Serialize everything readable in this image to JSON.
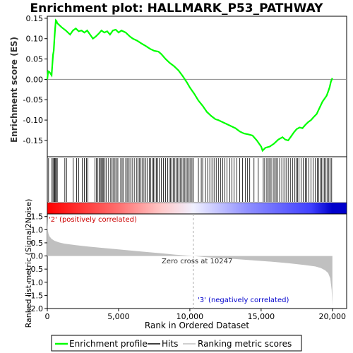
{
  "title": "Enrichment plot: HALLMARK_P53_PATHWAY",
  "chart_data": [
    {
      "type": "line",
      "panel": "enrichment-score",
      "ylabel": "Enrichment score (ES)",
      "ylim": [
        -0.19,
        0.155
      ],
      "xlim": [
        0,
        21000
      ],
      "yticks": [
        "0.15",
        "0.10",
        "0.05",
        "0.00",
        "-0.05",
        "-0.10",
        "-0.15"
      ],
      "ytick_values": [
        0.15,
        0.1,
        0.05,
        0.0,
        -0.05,
        -0.1,
        -0.15
      ],
      "series": [
        {
          "name": "Enrichment profile",
          "color": "#00ff00",
          "x": [
            0,
            60,
            150,
            300,
            400,
            450,
            500,
            550,
            600,
            650,
            700,
            1000,
            1300,
            1600,
            1800,
            2000,
            2200,
            2400,
            2600,
            2800,
            3000,
            3200,
            3400,
            3600,
            3800,
            4000,
            4200,
            4400,
            4600,
            4800,
            5000,
            5200,
            5500,
            5800,
            6000,
            6300,
            6600,
            6900,
            7200,
            7500,
            7800,
            8000,
            8300,
            8600,
            8900,
            9200,
            9500,
            9800,
            10000,
            10300,
            10600,
            10900,
            11200,
            11500,
            11800,
            12000,
            12300,
            12600,
            12900,
            13200,
            13500,
            13800,
            14100,
            14400,
            14700,
            15000,
            15100,
            15300,
            15600,
            15900,
            16200,
            16500,
            16700,
            16900,
            17100,
            17300,
            17500,
            17700,
            17900,
            18100,
            18300,
            18500,
            18700,
            18900,
            19100,
            19300,
            19500,
            19600,
            19700,
            19800,
            19900,
            20000
          ],
          "values": [
            0.0,
            0.02,
            0.018,
            0.01,
            0.06,
            0.07,
            0.1,
            0.125,
            0.145,
            0.143,
            0.138,
            0.128,
            0.12,
            0.11,
            0.12,
            0.125,
            0.118,
            0.12,
            0.115,
            0.12,
            0.11,
            0.1,
            0.105,
            0.112,
            0.12,
            0.115,
            0.118,
            0.11,
            0.12,
            0.122,
            0.115,
            0.12,
            0.115,
            0.105,
            0.1,
            0.095,
            0.088,
            0.082,
            0.075,
            0.07,
            0.068,
            0.062,
            0.05,
            0.04,
            0.032,
            0.022,
            0.008,
            -0.008,
            -0.02,
            -0.035,
            -0.052,
            -0.065,
            -0.08,
            -0.09,
            -0.098,
            -0.1,
            -0.105,
            -0.11,
            -0.115,
            -0.12,
            -0.128,
            -0.133,
            -0.135,
            -0.138,
            -0.15,
            -0.165,
            -0.175,
            -0.168,
            -0.165,
            -0.158,
            -0.148,
            -0.142,
            -0.148,
            -0.15,
            -0.14,
            -0.13,
            -0.122,
            -0.118,
            -0.12,
            -0.112,
            -0.105,
            -0.1,
            -0.092,
            -0.085,
            -0.07,
            -0.055,
            -0.045,
            -0.04,
            -0.03,
            -0.02,
            -0.005,
            0.003
          ]
        }
      ],
      "zero_line": 0.0
    },
    {
      "type": "rug",
      "panel": "hits",
      "legend_label": "Hits",
      "hits_x": [
        90,
        330,
        400,
        470,
        520,
        580,
        640,
        700,
        1230,
        1350,
        1820,
        2050,
        2200,
        2450,
        2600,
        2750,
        2850,
        3350,
        3450,
        3550,
        3650,
        3720,
        3800,
        3880,
        3950,
        4050,
        4150,
        4300,
        4450,
        4550,
        4650,
        4750,
        4850,
        4950,
        5150,
        5250,
        5350,
        5500,
        5600,
        5700,
        5800,
        5950,
        6100,
        6250,
        6350,
        6450,
        6550,
        6650,
        6780,
        6900,
        7000,
        7150,
        7250,
        7350,
        7450,
        7550,
        7650,
        7750,
        7850,
        8000,
        8150,
        8300,
        8450,
        8550,
        8650,
        8750,
        8850,
        8950,
        9050,
        9150,
        9250,
        9350,
        9450,
        9550,
        9650,
        9750,
        9850,
        9950,
        10050,
        10150,
        10250,
        10600,
        10800,
        10900,
        11100,
        11250,
        11400,
        11550,
        11700,
        11850,
        12000,
        12150,
        12300,
        12450,
        12600,
        12800,
        12950,
        13100,
        13300,
        13500,
        13700,
        13900,
        14050,
        14200,
        14500,
        14800,
        15150,
        15250,
        15400,
        15500,
        15600,
        15700,
        15850,
        15950,
        16050,
        16150,
        16300,
        16450,
        16600,
        16750,
        16900,
        17050,
        17200,
        17350,
        17450,
        17550,
        17650,
        17800,
        17950,
        18100,
        18200,
        18350,
        18500,
        18650,
        18800,
        18950,
        19050,
        19150,
        19250,
        19350,
        19450,
        19550,
        19650,
        19750,
        19850,
        19950
      ]
    },
    {
      "type": "area",
      "panel": "ranked-metric",
      "ylabel": "Ranked list metric (Signal2Noise)",
      "xlabel": "Rank in Ordered Dataset",
      "ylim": [
        -2.0,
        1.6
      ],
      "xlim": [
        0,
        21000
      ],
      "yticks": [
        "1.5",
        "1.0",
        "0.5",
        "0.0",
        "-0.5",
        "-1.0",
        "-1.5",
        "-2.0"
      ],
      "ytick_values": [
        1.5,
        1.0,
        0.5,
        0.0,
        -0.5,
        -1.0,
        -1.5,
        -2.0
      ],
      "xticks": [
        "0",
        "5,000",
        "10,000",
        "15,000",
        "20,000"
      ],
      "xtick_values": [
        0,
        5000,
        10000,
        15000,
        20000
      ],
      "series": [
        {
          "name": "Ranking metric scores",
          "color": "#c0c0c0",
          "x": [
            0,
            30,
            80,
            150,
            300,
            500,
            800,
            1200,
            2000,
            3000,
            4000,
            5000,
            6000,
            7000,
            8000,
            9000,
            10000,
            10247,
            11000,
            12000,
            13000,
            14000,
            15000,
            16000,
            17000,
            18000,
            18800,
            19200,
            19500,
            19700,
            19850,
            19950,
            20000
          ],
          "values": [
            1.55,
            1.0,
            0.85,
            0.75,
            0.65,
            0.58,
            0.52,
            0.47,
            0.41,
            0.35,
            0.3,
            0.25,
            0.2,
            0.15,
            0.1,
            0.05,
            0.01,
            0.0,
            -0.04,
            -0.08,
            -0.11,
            -0.15,
            -0.19,
            -0.23,
            -0.28,
            -0.34,
            -0.4,
            -0.46,
            -0.55,
            -0.65,
            -0.85,
            -1.3,
            -1.9
          ]
        }
      ],
      "annotations": {
        "positive_label": "'2' (positively correlated)",
        "positive_color": "#cc0000",
        "negative_label": "'3' (negatively correlated)",
        "negative_color": "#0000cc",
        "zero_cross_label": "Zero cross at 10247",
        "zero_cross_x": 10247
      },
      "colorbar": {
        "stops": [
          {
            "x": 0,
            "color": "#ff0000"
          },
          {
            "x": 5000,
            "color": "#ff7070"
          },
          {
            "x": 8000,
            "color": "#ffc8c8"
          },
          {
            "x": 10247,
            "color": "#f0f0ff"
          },
          {
            "x": 14000,
            "color": "#9090ff"
          },
          {
            "x": 18500,
            "color": "#4040ff"
          },
          {
            "x": 20000,
            "color": "#0000cc"
          }
        ]
      }
    }
  ],
  "legend": {
    "items": [
      {
        "label": "Enrichment profile",
        "color": "#00ff00"
      },
      {
        "label": "Hits",
        "color": "#000000"
      },
      {
        "label": "Ranking metric scores",
        "color": "#c0c0c0"
      }
    ]
  }
}
